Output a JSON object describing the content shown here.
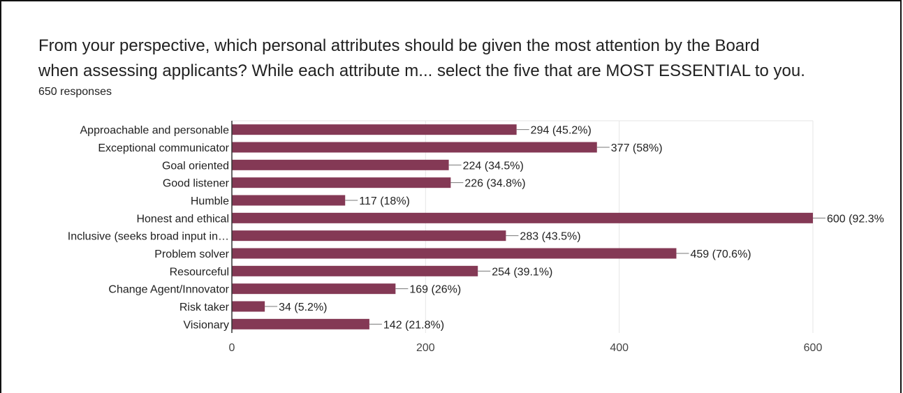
{
  "question": {
    "title": "From your perspective, which personal attributes should be given the most attention by the Board\nwhen assessing applicants? While each attribute m... select the five that are MOST ESSENTIAL to you.",
    "responses": "650 responses"
  },
  "colors": {
    "bar": "#843955",
    "grid": "#e6e6e6",
    "text": "#212121",
    "axis_text": "#444444"
  },
  "chart_data": {
    "type": "bar",
    "orientation": "horizontal",
    "categories": [
      "Approachable and personable",
      "Exceptional communicator",
      "Goal oriented",
      "Good listener",
      "Humble",
      "Honest and ethical",
      "Inclusive (seeks broad input in…",
      "Problem solver",
      "Resourceful",
      "Change Agent/Innovator",
      "Risk taker",
      "Visionary"
    ],
    "values": [
      294,
      377,
      224,
      226,
      117,
      600,
      283,
      459,
      254,
      169,
      34,
      142
    ],
    "value_labels": [
      "294 (45.2%)",
      "377 (58%)",
      "224 (34.5%)",
      "226 (34.8%)",
      "117 (18%)",
      "600 (92.3%",
      "283 (43.5%)",
      "459 (70.6%)",
      "254 (39.1%)",
      "169 (26%)",
      "34 (5.2%)",
      "142 (21.8%)"
    ],
    "xlim": [
      0,
      600
    ],
    "xticks": [
      "0",
      "200",
      "400",
      "600"
    ],
    "xtick_values": [
      0,
      200,
      400,
      600
    ],
    "grid": true,
    "legend": "none"
  }
}
